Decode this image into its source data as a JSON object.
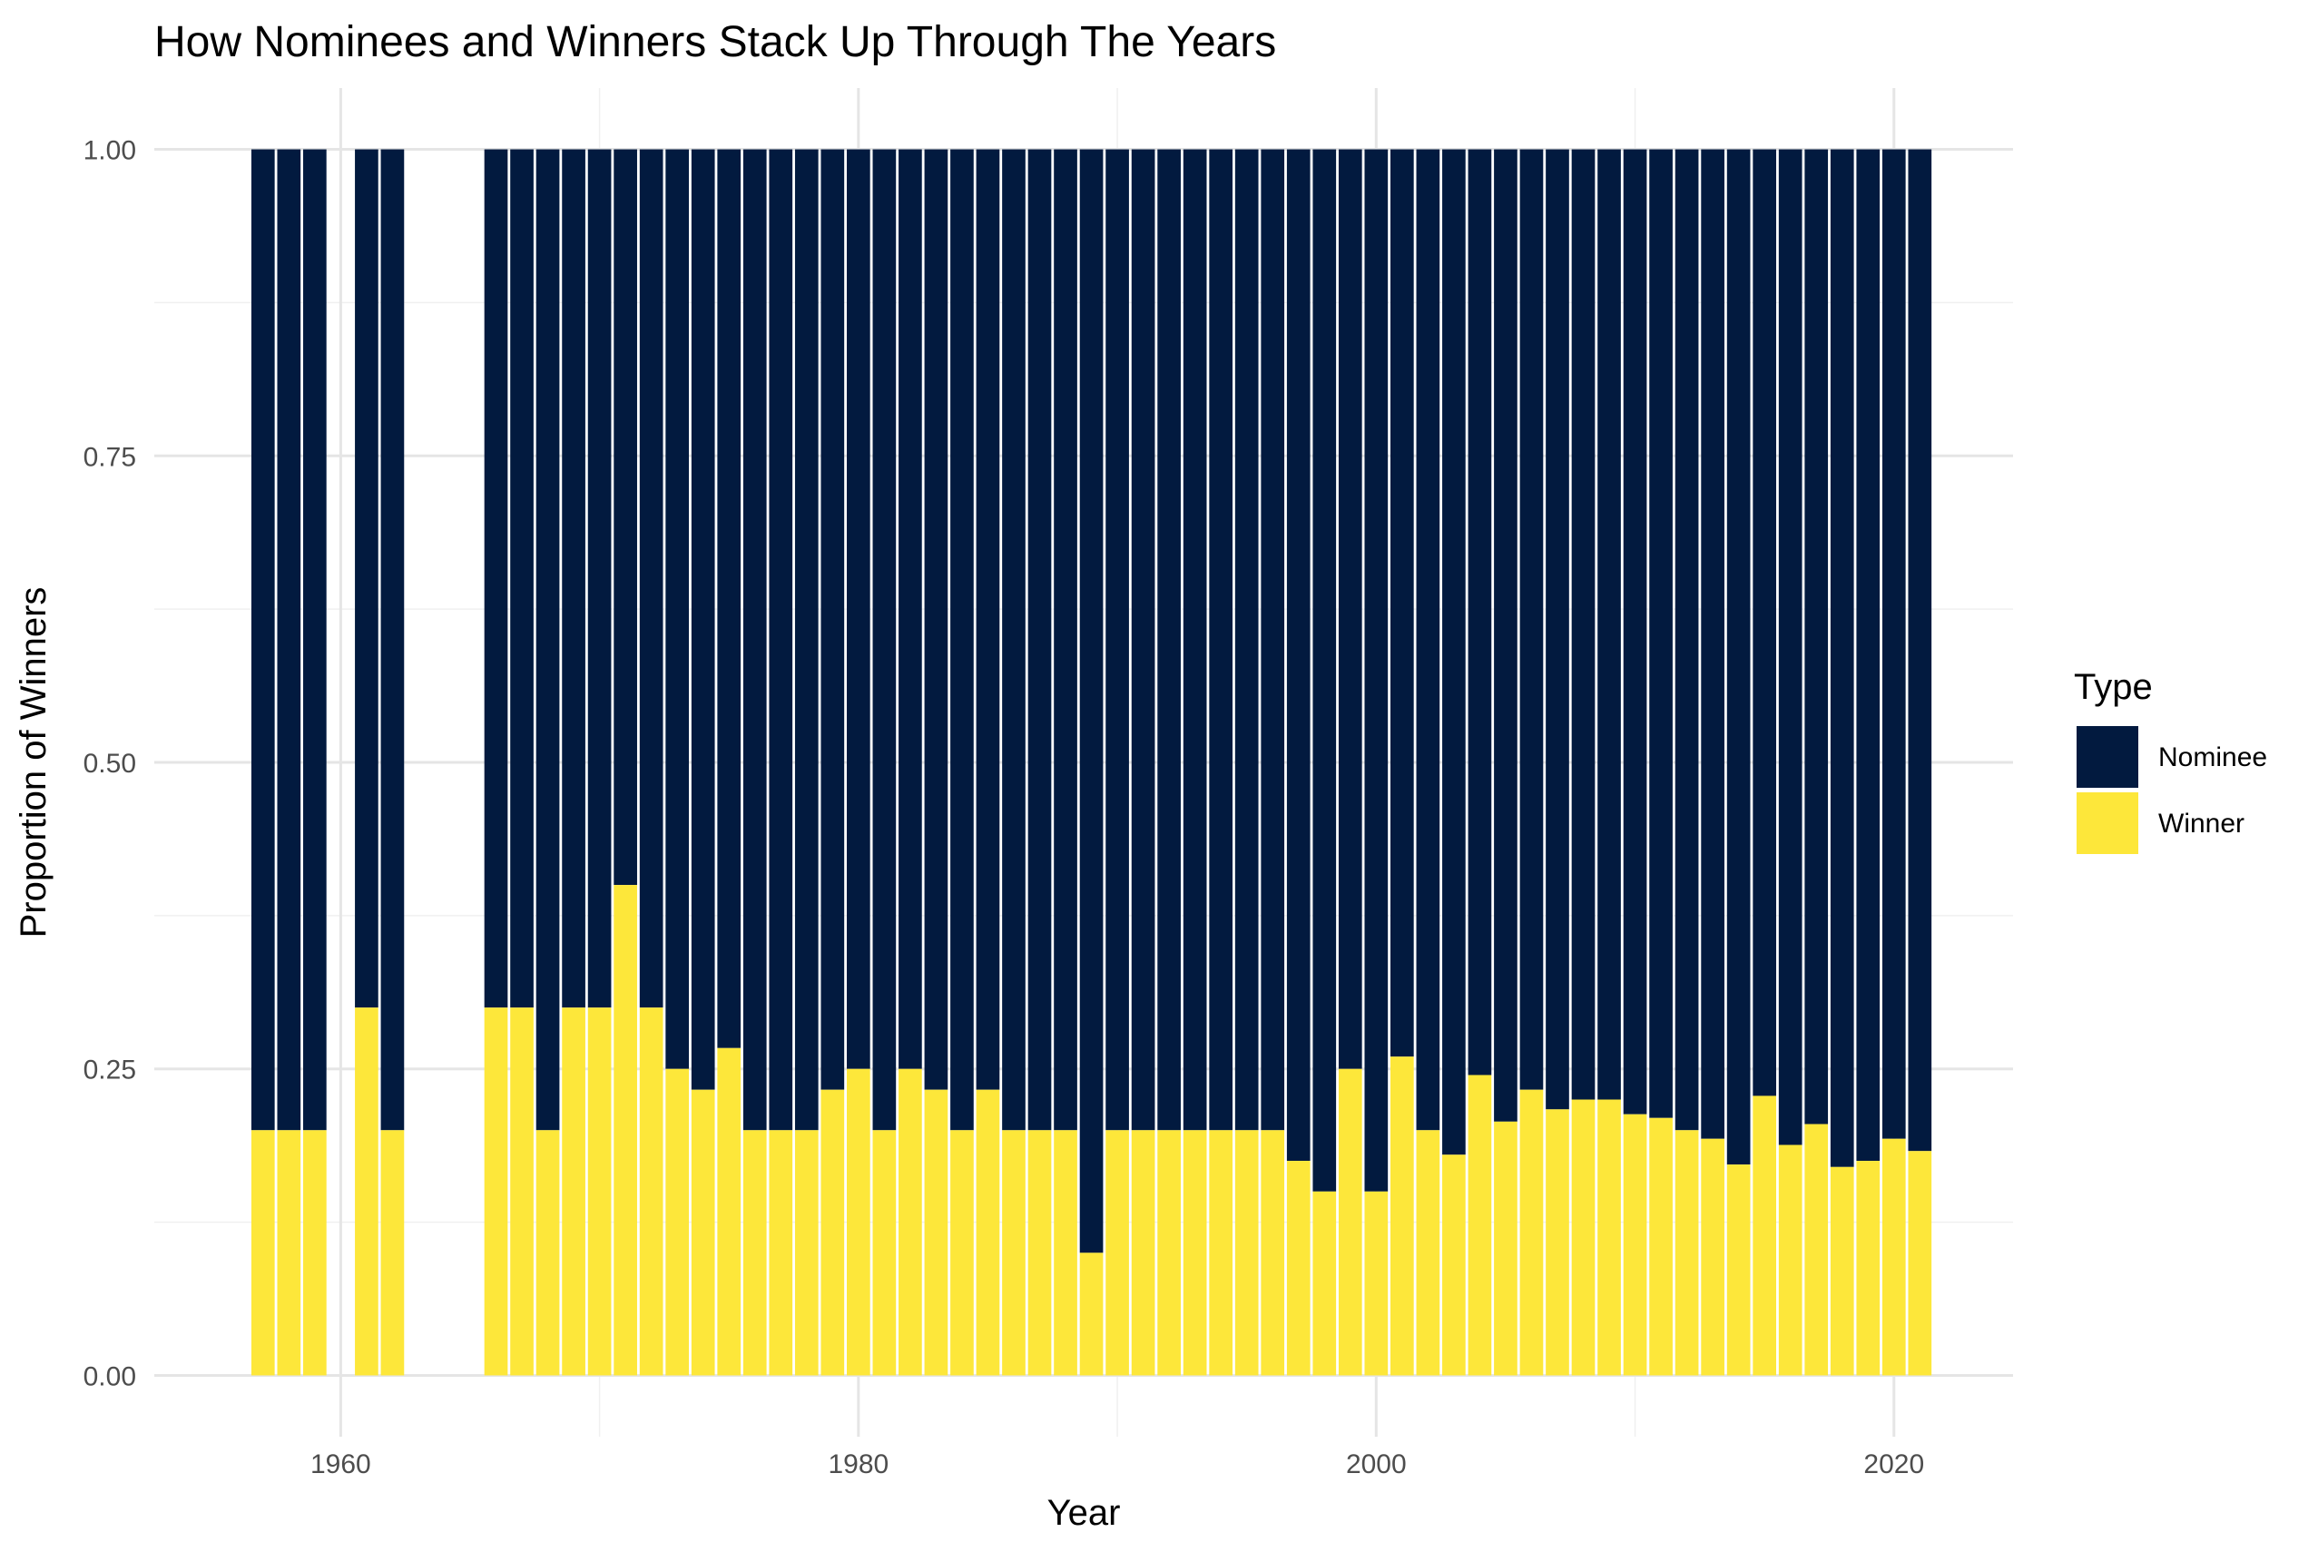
{
  "chart_data": {
    "type": "bar",
    "stacked": true,
    "title": "How Nominees and Winners Stack Up Through The Years",
    "xlabel": "Year",
    "ylabel": "Proportion of Winners",
    "xlim": [
      1952.8,
      2024.6
    ],
    "ylim": [
      -0.05,
      1.05
    ],
    "x_ticks": [
      1960,
      1980,
      2000,
      2020
    ],
    "y_ticks": [
      0.0,
      0.25,
      0.5,
      0.75,
      1.0
    ],
    "y_tick_labels": [
      "0.00",
      "0.25",
      "0.50",
      "0.75",
      "1.00"
    ],
    "grid": true,
    "legend": {
      "title": "Type",
      "position": "right",
      "entries": [
        {
          "name": "Nominee",
          "color": "#021a3f"
        },
        {
          "name": "Winner",
          "color": "#fde73a"
        }
      ]
    },
    "colors": {
      "Nominee": "#021a3f",
      "Winner": "#fde73a"
    },
    "x": [
      1957,
      1958,
      1959,
      1961,
      1962,
      1966,
      1967,
      1968,
      1969,
      1970,
      1971,
      1972,
      1973,
      1974,
      1975,
      1976,
      1977,
      1978,
      1979,
      1980,
      1981,
      1982,
      1983,
      1984,
      1985,
      1986,
      1987,
      1988,
      1989,
      1990,
      1991,
      1992,
      1993,
      1994,
      1995,
      1996,
      1997,
      1998,
      1999,
      2000,
      2001,
      2002,
      2003,
      2004,
      2005,
      2006,
      2007,
      2008,
      2009,
      2010,
      2011,
      2012,
      2013,
      2014,
      2015,
      2016,
      2017,
      2018,
      2019,
      2020,
      2021
    ],
    "series": [
      {
        "name": "Winner",
        "values": [
          0.2,
          0.2,
          0.2,
          0.3,
          0.2,
          0.3,
          0.3,
          0.2,
          0.3,
          0.3,
          0.4,
          0.3,
          0.25,
          0.233,
          0.267,
          0.2,
          0.2,
          0.2,
          0.233,
          0.25,
          0.2,
          0.25,
          0.233,
          0.2,
          0.233,
          0.2,
          0.2,
          0.2,
          0.1,
          0.2,
          0.2,
          0.2,
          0.2,
          0.2,
          0.2,
          0.2,
          0.175,
          0.15,
          0.25,
          0.15,
          0.26,
          0.2,
          0.18,
          0.245,
          0.207,
          0.233,
          0.217,
          0.225,
          0.225,
          0.213,
          0.21,
          0.2,
          0.193,
          0.172,
          0.228,
          0.188,
          0.205,
          0.17,
          0.175,
          0.193,
          0.183
        ]
      },
      {
        "name": "Nominee",
        "values": [
          0.8,
          0.8,
          0.8,
          0.7,
          0.8,
          0.7,
          0.7,
          0.8,
          0.7,
          0.7,
          0.6,
          0.7,
          0.75,
          0.767,
          0.733,
          0.8,
          0.8,
          0.8,
          0.767,
          0.75,
          0.8,
          0.75,
          0.767,
          0.8,
          0.767,
          0.8,
          0.8,
          0.8,
          0.9,
          0.8,
          0.8,
          0.8,
          0.8,
          0.8,
          0.8,
          0.8,
          0.825,
          0.85,
          0.75,
          0.85,
          0.74,
          0.8,
          0.82,
          0.755,
          0.793,
          0.767,
          0.783,
          0.775,
          0.775,
          0.787,
          0.79,
          0.8,
          0.807,
          0.828,
          0.772,
          0.812,
          0.795,
          0.83,
          0.825,
          0.807,
          0.817
        ]
      }
    ]
  }
}
